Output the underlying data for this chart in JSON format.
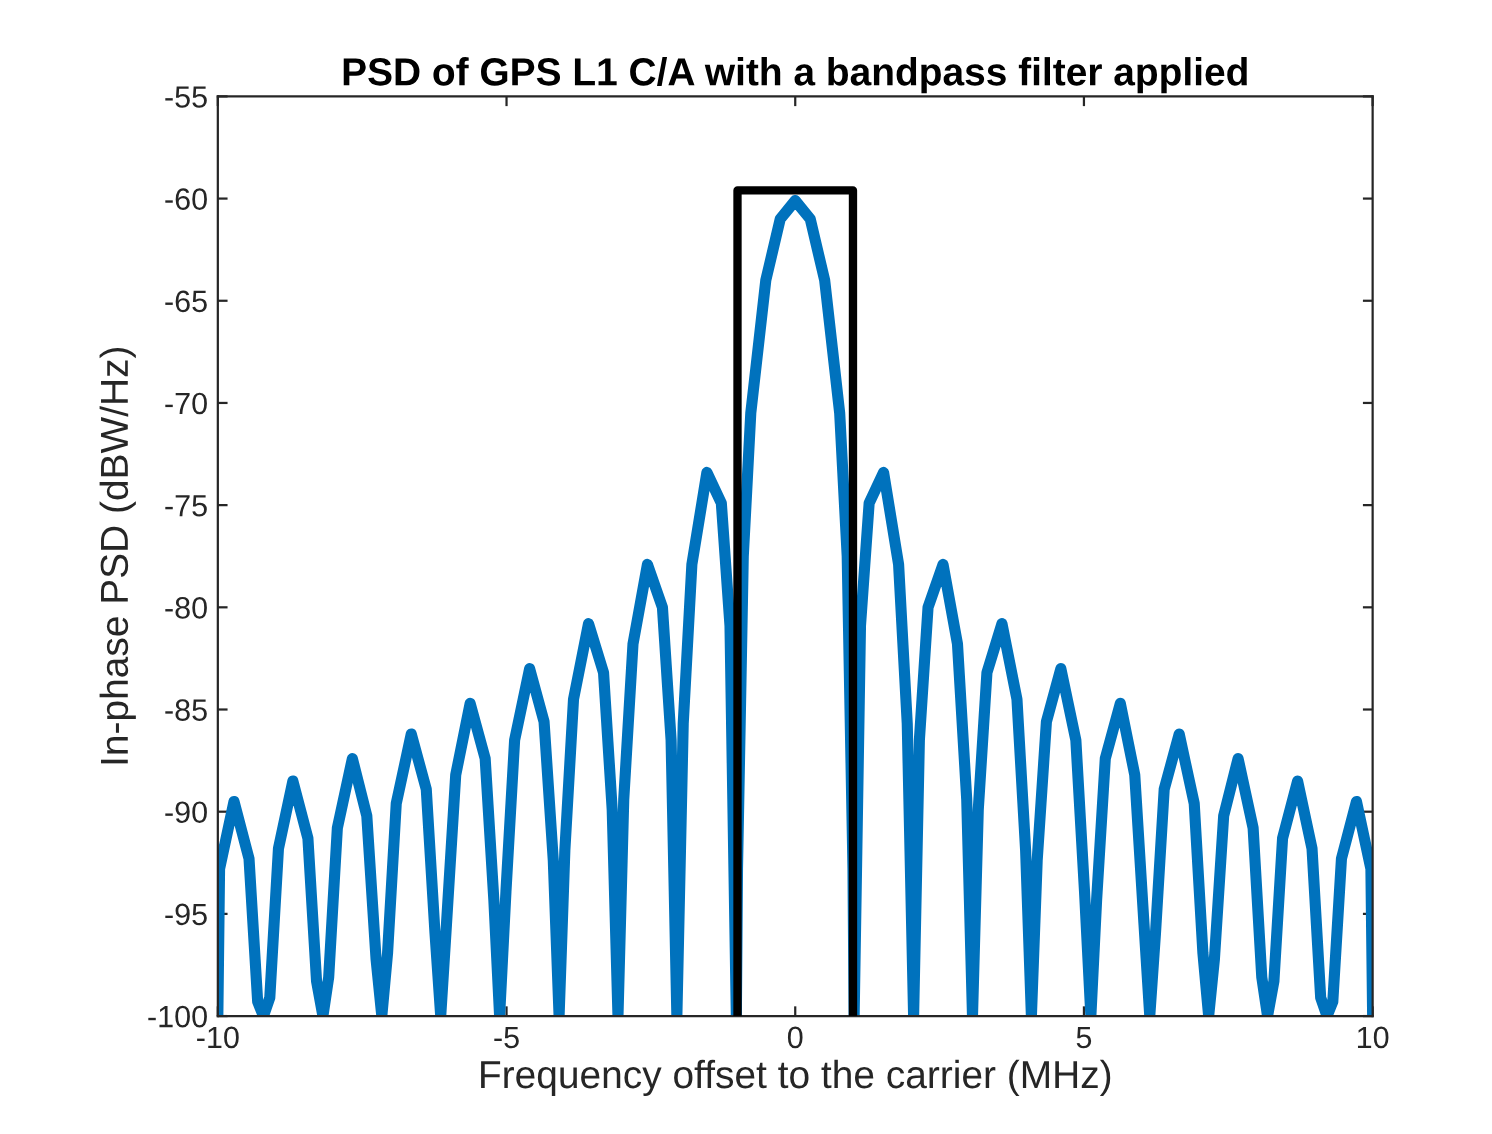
{
  "chart_data": {
    "type": "line",
    "title": "PSD of GPS L1 C/A with a bandpass filter applied",
    "xlabel": "Frequency offset to the carrier (MHz)",
    "ylabel": "In-phase PSD (dBW/Hz)",
    "xlim": [
      -10,
      10
    ],
    "ylim": [
      -100,
      -55
    ],
    "xticks": [
      -10,
      -5,
      0,
      5,
      10
    ],
    "yticks": [
      -100,
      -95,
      -90,
      -85,
      -80,
      -75,
      -70,
      -65,
      -60,
      -55
    ],
    "grid": false,
    "legend": false,
    "marker": "none",
    "line_style": "solid",
    "series": [
      {
        "color": "#0072bd",
        "x": [
          -10,
          -9.97,
          -9.72,
          -9.46,
          -9.31,
          -9.21,
          -9.1,
          -8.95,
          -8.7,
          -8.44,
          -8.29,
          -8.18,
          -8.08,
          -7.93,
          -7.67,
          -7.42,
          -7.26,
          -7.16,
          -7.06,
          -6.91,
          -6.65,
          -6.39,
          -6.24,
          -6.14,
          -6.04,
          -5.88,
          -5.63,
          -5.37,
          -5.22,
          -5.12,
          -5.01,
          -4.86,
          -4.6,
          -4.35,
          -4.19,
          -4.09,
          -3.99,
          -3.84,
          -3.58,
          -3.32,
          -3.17,
          -3.07,
          -2.97,
          -2.81,
          -2.56,
          -2.3,
          -2.15,
          -2.05,
          -1.94,
          -1.79,
          -1.53,
          -1.28,
          -1.13,
          -1.02,
          -1.0,
          -0.9,
          -0.77,
          -0.51,
          -0.26,
          0,
          0.26,
          0.51,
          0.77,
          0.9,
          1.0,
          1.02,
          1.13,
          1.28,
          1.53,
          1.79,
          1.94,
          2.05,
          2.15,
          2.3,
          2.56,
          2.81,
          2.97,
          3.07,
          3.17,
          3.32,
          3.58,
          3.84,
          3.99,
          4.09,
          4.19,
          4.35,
          4.6,
          4.86,
          5.01,
          5.12,
          5.22,
          5.37,
          5.63,
          5.88,
          6.04,
          6.14,
          6.24,
          6.39,
          6.65,
          6.91,
          7.06,
          7.16,
          7.26,
          7.42,
          7.67,
          7.93,
          8.08,
          8.18,
          8.29,
          8.44,
          8.7,
          8.95,
          9.1,
          9.21,
          9.31,
          9.46,
          9.72,
          9.97,
          10
        ],
        "values": [
          -100,
          -92.8,
          -89.5,
          -92.3,
          -99.3,
          -100,
          -99.1,
          -91.8,
          -88.5,
          -91.3,
          -98.3,
          -100,
          -98.1,
          -90.8,
          -87.4,
          -90.2,
          -97.2,
          -100,
          -96.9,
          -89.6,
          -86.2,
          -88.9,
          -95.9,
          -100,
          -95.5,
          -88.2,
          -84.7,
          -87.4,
          -94.3,
          -100,
          -93.9,
          -86.5,
          -83.0,
          -85.6,
          -92.4,
          -100,
          -91.9,
          -84.5,
          -80.8,
          -83.2,
          -89.9,
          -100,
          -89.4,
          -81.8,
          -77.9,
          -80.0,
          -86.5,
          -100,
          -85.7,
          -77.9,
          -73.4,
          -74.9,
          -80.9,
          -100,
          -92.8,
          -77.5,
          -70.5,
          -64,
          -61,
          -60.1,
          -61,
          -64,
          -70.5,
          -77.5,
          -92.8,
          -100,
          -80.9,
          -74.9,
          -73.4,
          -77.9,
          -85.7,
          -100,
          -86.5,
          -80.0,
          -77.9,
          -81.8,
          -89.4,
          -100,
          -89.9,
          -83.2,
          -80.8,
          -84.5,
          -91.9,
          -100,
          -92.4,
          -85.6,
          -83.0,
          -86.5,
          -93.9,
          -100,
          -94.3,
          -87.4,
          -84.7,
          -88.2,
          -95.5,
          -100,
          -95.9,
          -88.9,
          -86.2,
          -89.6,
          -96.9,
          -100,
          -97.2,
          -90.2,
          -87.4,
          -90.8,
          -98.1,
          -100,
          -98.3,
          -91.3,
          -88.5,
          -91.8,
          -99.1,
          -100,
          -99.3,
          -92.3,
          -89.5,
          -92.8,
          -100
        ]
      },
      {
        "color": "#000000",
        "x": [
          -1,
          -1,
          1,
          1
        ],
        "values": [
          -100,
          -59.6,
          -59.6,
          -100
        ]
      }
    ]
  }
}
